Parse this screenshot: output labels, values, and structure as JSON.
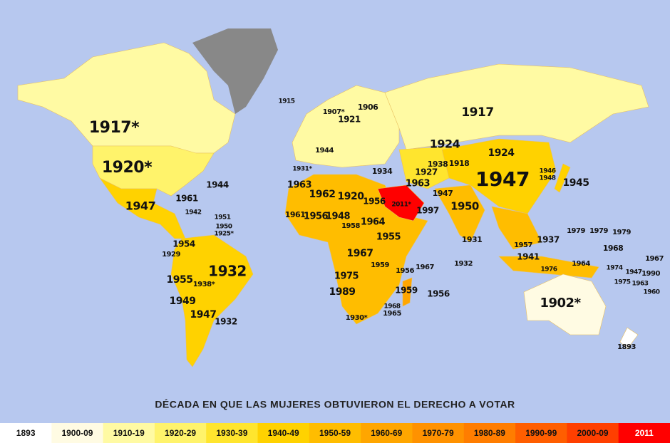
{
  "title": "DÉCADA EN QUE LAS MUJERES OBTUVIERON EL DERECHO A VOTAR",
  "legend": [
    {
      "label": "1893",
      "color": "#ffffff"
    },
    {
      "label": "1900-09",
      "color": "#fffbe3"
    },
    {
      "label": "1910-19",
      "color": "#fffaa3"
    },
    {
      "label": "1920-29",
      "color": "#fff36b"
    },
    {
      "label": "1930-39",
      "color": "#ffe52e"
    },
    {
      "label": "1940-49",
      "color": "#ffd200"
    },
    {
      "label": "1950-59",
      "color": "#ffbd00"
    },
    {
      "label": "1960-69",
      "color": "#ffa600"
    },
    {
      "label": "1970-79",
      "color": "#ff9200"
    },
    {
      "label": "1980-89",
      "color": "#ff7d00"
    },
    {
      "label": "1990-99",
      "color": "#ff5e00"
    },
    {
      "label": "2000-09",
      "color": "#ff3f00"
    },
    {
      "label": "2011",
      "color": "#ff0000"
    }
  ],
  "labels": [
    "1917*",
    "1920*",
    "1944",
    "1961",
    "1947",
    "1915",
    "1907*",
    "1906",
    "1921",
    "1917",
    "1924",
    "1924",
    "1947",
    "1945",
    "1963",
    "1962",
    "1920",
    "1956",
    "2011*",
    "1997",
    "1963",
    "1927",
    "1938",
    "1918",
    "1934",
    "1947",
    "1950",
    "1931",
    "1932",
    "1964",
    "1955",
    "1967",
    "1975",
    "1989",
    "1959",
    "1956",
    "1967",
    "1959",
    "1956",
    "1930*",
    "1965",
    "1968",
    "1932",
    "1955",
    "1949",
    "1947",
    "1932",
    "1954",
    "1929",
    "1938*",
    "1979",
    "1979",
    "1979",
    "1968",
    "1967",
    "1974",
    "1947",
    "1990",
    "1963",
    "1975",
    "1960",
    "1902*",
    "1893",
    "1937",
    "1941",
    "1957",
    "1964",
    "1976",
    "1948",
    "1946",
    "1956",
    "1948",
    "1958",
    "1961",
    "1942",
    "1951",
    "1950",
    "1925*",
    "1931*",
    "1944"
  ]
}
